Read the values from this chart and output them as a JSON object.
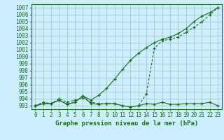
{
  "title": "Graphe pression niveau de la mer (hPa)",
  "x": [
    0,
    1,
    2,
    3,
    4,
    5,
    6,
    7,
    8,
    9,
    10,
    11,
    12,
    13,
    14,
    15,
    16,
    17,
    18,
    19,
    20,
    21,
    22,
    23
  ],
  "line_flat": [
    993.0,
    993.3,
    993.3,
    993.8,
    993.2,
    993.5,
    994.4,
    993.3,
    993.2,
    993.3,
    993.3,
    993.0,
    992.8,
    993.0,
    993.3,
    993.2,
    993.5,
    993.2,
    993.2,
    993.3,
    993.3,
    993.3,
    993.5,
    993.0
  ],
  "line_rise": [
    993.0,
    993.3,
    993.3,
    993.8,
    993.2,
    993.5,
    994.4,
    993.8,
    994.5,
    995.5,
    996.8,
    998.2,
    999.5,
    1000.5,
    1001.3,
    1002.0,
    1002.5,
    1002.8,
    1003.3,
    1004.0,
    1005.0,
    1005.8,
    1006.3,
    1007.0
  ],
  "line_dip": [
    993.0,
    993.5,
    993.3,
    994.0,
    993.5,
    993.8,
    994.1,
    993.5,
    993.3,
    993.3,
    993.3,
    993.0,
    992.8,
    993.0,
    994.7,
    1001.2,
    1002.3,
    1002.5,
    1002.8,
    1003.5,
    1004.2,
    1005.0,
    1006.0,
    1007.0
  ],
  "bg_color": "#cceeff",
  "grid_color": "#aacccc",
  "line_color": "#1a6e1a",
  "ylim_min": 992.5,
  "ylim_max": 1007.5,
  "yticks": [
    993,
    994,
    995,
    996,
    997,
    998,
    999,
    1000,
    1001,
    1002,
    1003,
    1004,
    1005,
    1006,
    1007
  ],
  "xlim_min": -0.5,
  "xlim_max": 23.5,
  "title_fontsize": 6.5,
  "tick_fontsize": 5.5
}
